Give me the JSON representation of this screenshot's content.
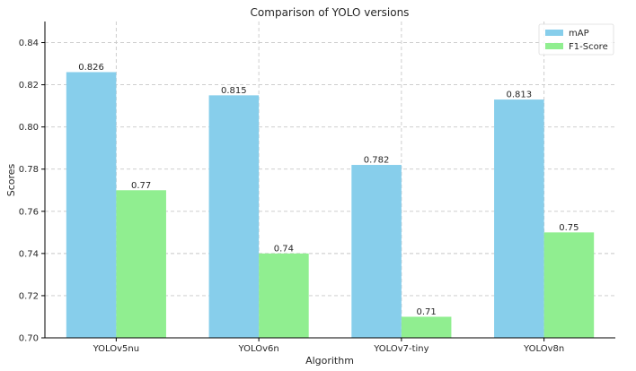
{
  "chart_data": {
    "type": "bar",
    "title": "Comparison of YOLO versions",
    "xlabel": "Algorithm",
    "ylabel": "Scores",
    "categories": [
      "YOLOv5nu",
      "YOLOv6n",
      "YOLOv7-tiny",
      "YOLOv8n"
    ],
    "series": [
      {
        "name": "mAP",
        "values": [
          0.826,
          0.815,
          0.782,
          0.813
        ],
        "labels": [
          "0.826",
          "0.815",
          "0.782",
          "0.813"
        ],
        "color": "#87CEEB"
      },
      {
        "name": "F1-Score",
        "values": [
          0.77,
          0.74,
          0.71,
          0.75
        ],
        "labels": [
          "0.77",
          "0.74",
          "0.71",
          "0.75"
        ],
        "color": "#90EE90"
      }
    ],
    "ylim": [
      0.7,
      0.85
    ],
    "yticks": [
      0.7,
      0.72,
      0.74,
      0.76,
      0.78,
      0.8,
      0.82,
      0.84
    ],
    "ytick_labels": [
      "0.70",
      "0.72",
      "0.74",
      "0.76",
      "0.78",
      "0.80",
      "0.82",
      "0.84"
    ],
    "grid": true,
    "legend_position": "top-right"
  }
}
